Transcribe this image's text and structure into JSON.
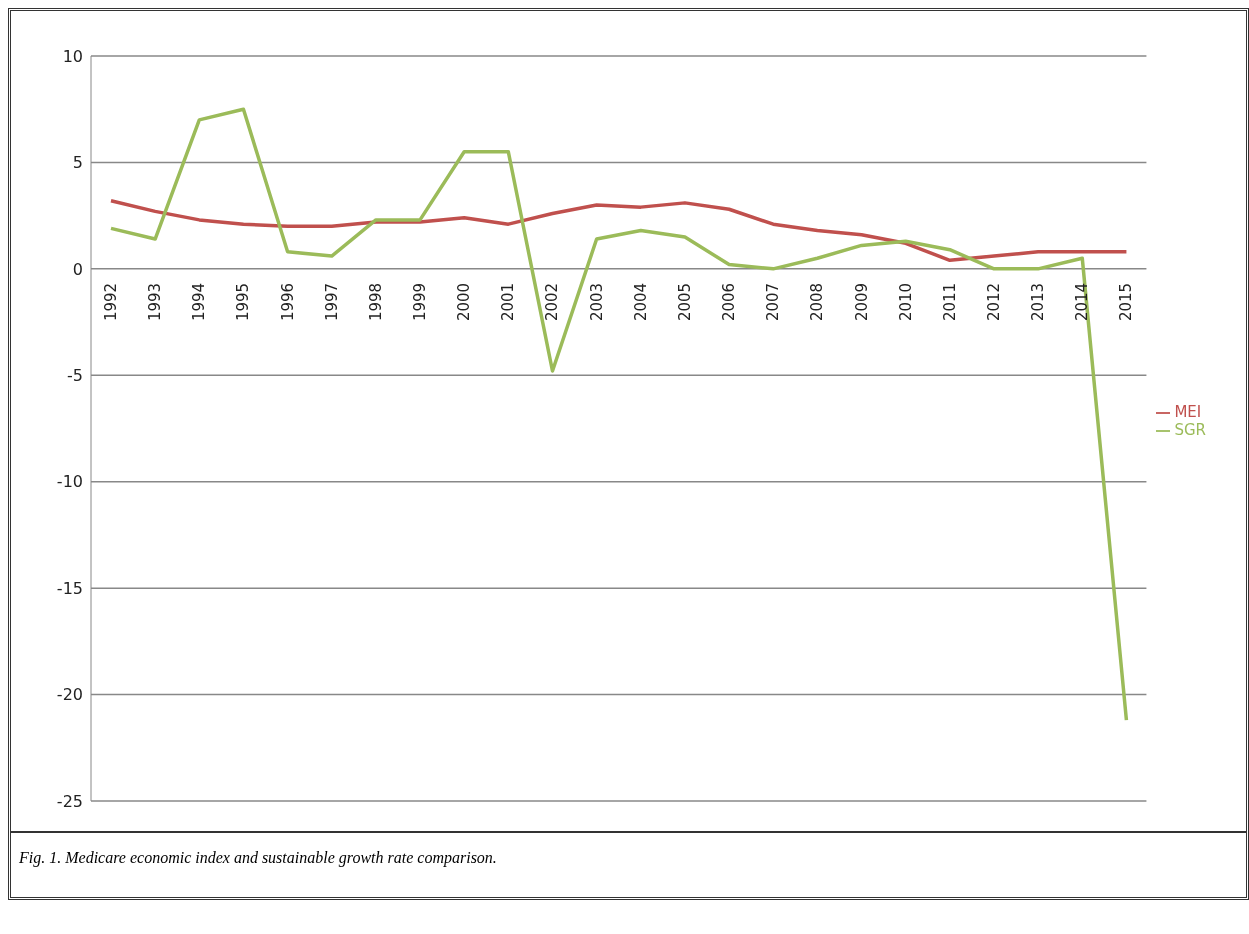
{
  "chart_data": {
    "type": "line",
    "categories": [
      "1992",
      "1993",
      "1994",
      "1995",
      "1996",
      "1997",
      "1998",
      "1999",
      "2000",
      "2001",
      "2002",
      "2003",
      "2004",
      "2005",
      "2006",
      "2007",
      "2008",
      "2009",
      "2010",
      "2011",
      "2012",
      "2013",
      "2014",
      "2015"
    ],
    "series": [
      {
        "name": "MEI",
        "color": "#c0504d",
        "values": [
          3.2,
          2.7,
          2.3,
          2.1,
          2.0,
          2.0,
          2.2,
          2.2,
          2.4,
          2.1,
          2.6,
          3.0,
          2.9,
          3.1,
          2.8,
          2.1,
          1.8,
          1.6,
          1.2,
          0.4,
          0.6,
          0.8,
          0.8,
          0.8
        ]
      },
      {
        "name": "SGR",
        "color": "#9bbb59",
        "values": [
          1.9,
          1.4,
          7.0,
          7.5,
          0.8,
          0.6,
          2.3,
          2.3,
          5.5,
          5.5,
          -4.8,
          1.4,
          1.8,
          1.5,
          0.2,
          0.0,
          0.5,
          1.1,
          1.3,
          0.9,
          0.0,
          0.0,
          0.5,
          -21.2
        ]
      }
    ],
    "ylim": [
      -25,
      10
    ],
    "yticks": [
      -25,
      -20,
      -15,
      -10,
      -5,
      0,
      5,
      10
    ],
    "grid": "y",
    "legend": "right",
    "marker": "none",
    "line_style": "solid",
    "annotations": [
      "Fig. 1. Medicare economic index and sustainable growth rate comparison."
    ]
  }
}
